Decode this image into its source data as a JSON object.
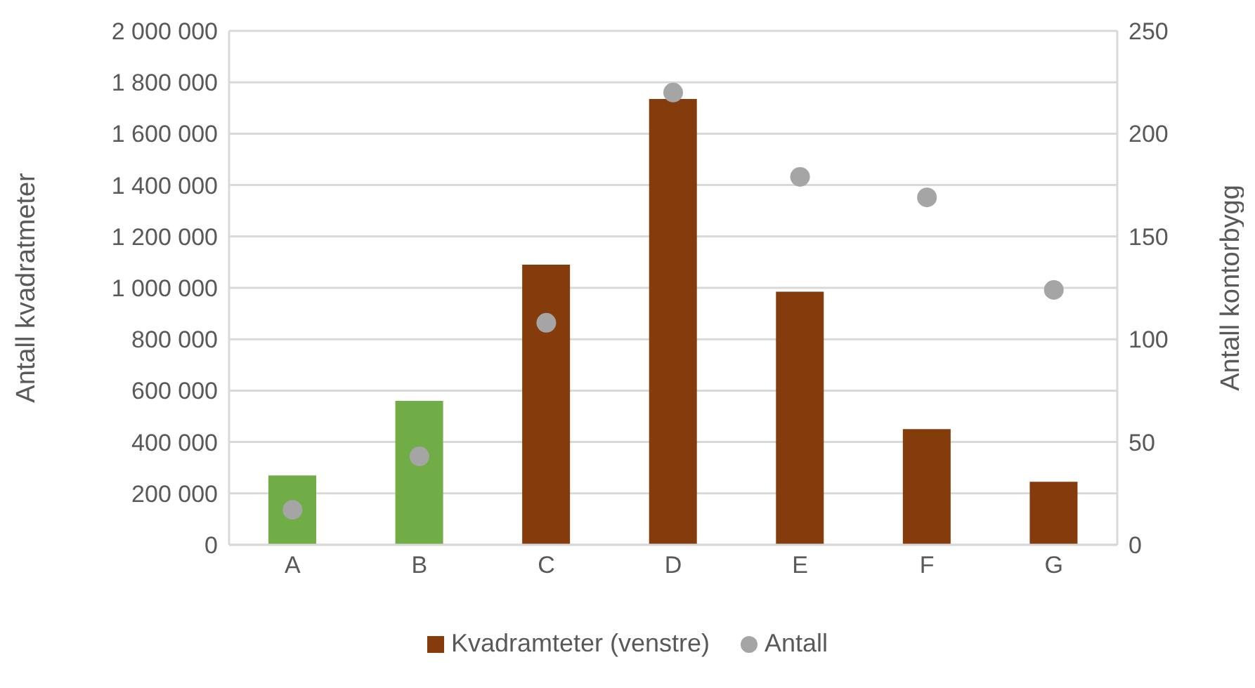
{
  "chart_data": {
    "type": "bar",
    "ylabel": "Antall kvadratmeter",
    "y2label": "Antall kontorbygg",
    "categories": [
      "A",
      "B",
      "C",
      "D",
      "E",
      "F",
      "G"
    ],
    "series": [
      {
        "name": "Kvadramteter (venstre)",
        "color": "#843c0c",
        "colors": [
          "#70ad47",
          "#70ad47",
          "#843c0c",
          "#843c0c",
          "#843c0c",
          "#843c0c",
          "#843c0c"
        ],
        "values": [
          270000,
          560000,
          1090000,
          1735000,
          985000,
          450000,
          245000
        ]
      },
      {
        "name": "Antall",
        "type": "scatter",
        "axis": "y2",
        "color": "#a5a5a5",
        "marker": "circle",
        "values": [
          17,
          43,
          108,
          220,
          179,
          169,
          124
        ]
      }
    ],
    "ylim": [
      0,
      2000000
    ],
    "yticks": [
      {
        "value": 0,
        "label": "0"
      },
      {
        "value": 200000,
        "label": "200 000"
      },
      {
        "value": 400000,
        "label": "400 000"
      },
      {
        "value": 600000,
        "label": "600 000"
      },
      {
        "value": 800000,
        "label": "800 000"
      },
      {
        "value": 1000000,
        "label": "1 000 000"
      },
      {
        "value": 1200000,
        "label": "1 200 000"
      },
      {
        "value": 1400000,
        "label": "1 400 000"
      },
      {
        "value": 1600000,
        "label": "1 600 000"
      },
      {
        "value": 1800000,
        "label": "1 800 000"
      },
      {
        "value": 2000000,
        "label": "2 000 000"
      }
    ],
    "y2lim": [
      0,
      250
    ],
    "y2ticks": [
      0,
      50,
      100,
      150,
      200,
      250
    ],
    "grid": "y",
    "legend": "bottom"
  }
}
